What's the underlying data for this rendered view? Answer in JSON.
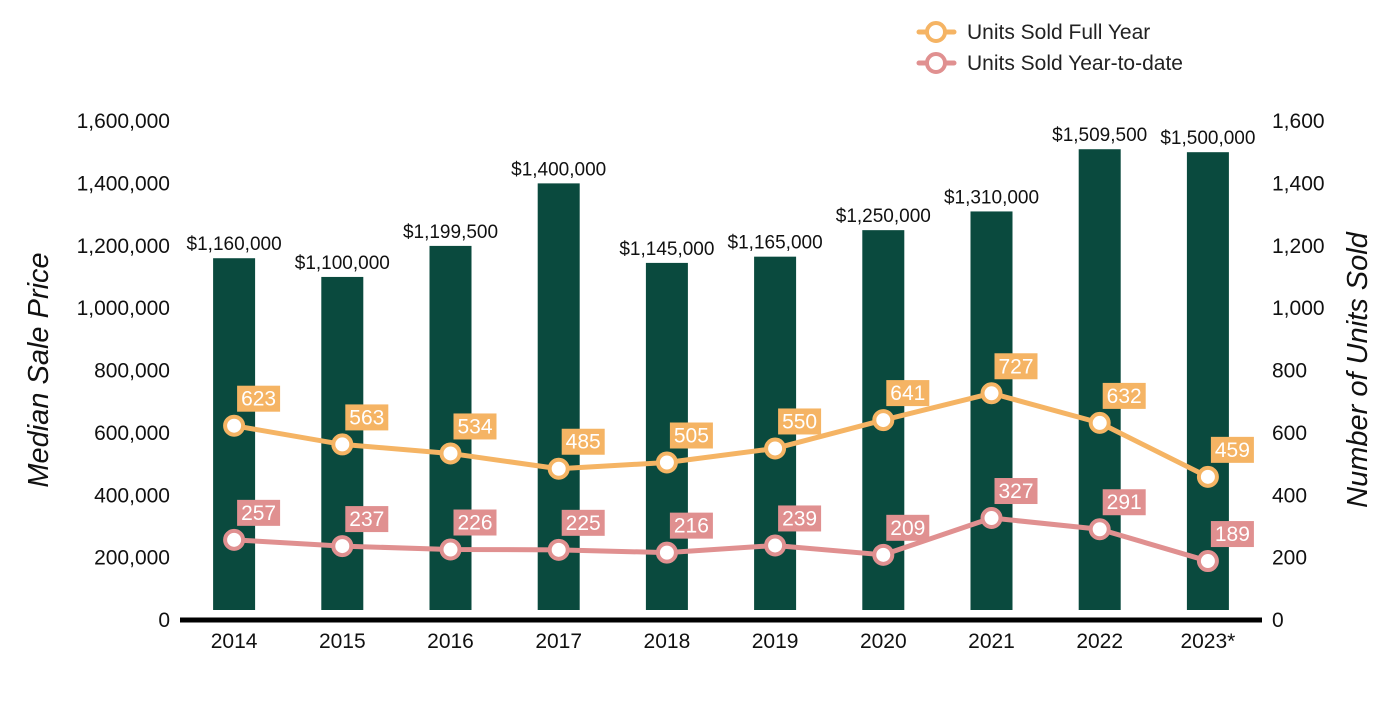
{
  "chart_data": {
    "type": "bar",
    "categories": [
      "2014",
      "2015",
      "2016",
      "2017",
      "2018",
      "2019",
      "2020",
      "2021",
      "2022",
      "2023*"
    ],
    "bars": {
      "values": [
        1160000,
        1100000,
        1199500,
        1400000,
        1145000,
        1165000,
        1250000,
        1310000,
        1509500,
        1500000
      ],
      "labels": [
        "$1,160,000",
        "$1,100,000",
        "$1,199,500",
        "$1,400,000",
        "$1,145,000",
        "$1,165,000",
        "$1,250,000",
        "$1,310,000",
        "$1,509,500",
        "$1,500,000"
      ],
      "color": "#0a4a3e"
    },
    "series": [
      {
        "name": "Units Sold Full Year",
        "type": "line",
        "axis": "right",
        "values": [
          623,
          563,
          534,
          485,
          505,
          550,
          641,
          727,
          632,
          459
        ],
        "color": "#f5b464"
      },
      {
        "name": "Units Sold Year-to-date",
        "type": "line",
        "axis": "right",
        "values": [
          257,
          237,
          226,
          225,
          216,
          239,
          209,
          327,
          291,
          189
        ],
        "color": "#e09090"
      }
    ],
    "ylabel": "Median Sale Price",
    "y2label": "Number of Units Sold",
    "ylim": [
      0,
      1600000
    ],
    "y2lim": [
      0,
      1600
    ],
    "yticks": [
      "0",
      "200,000",
      "400,000",
      "600,000",
      "800,000",
      "1,000,000",
      "1,200,000",
      "1,400,000",
      "1,600,000"
    ],
    "y2ticks": [
      "0",
      "200",
      "400",
      "600",
      "800",
      "1,000",
      "1,200",
      "1,400",
      "1,600"
    ],
    "grid": false,
    "legend": "top-right"
  }
}
